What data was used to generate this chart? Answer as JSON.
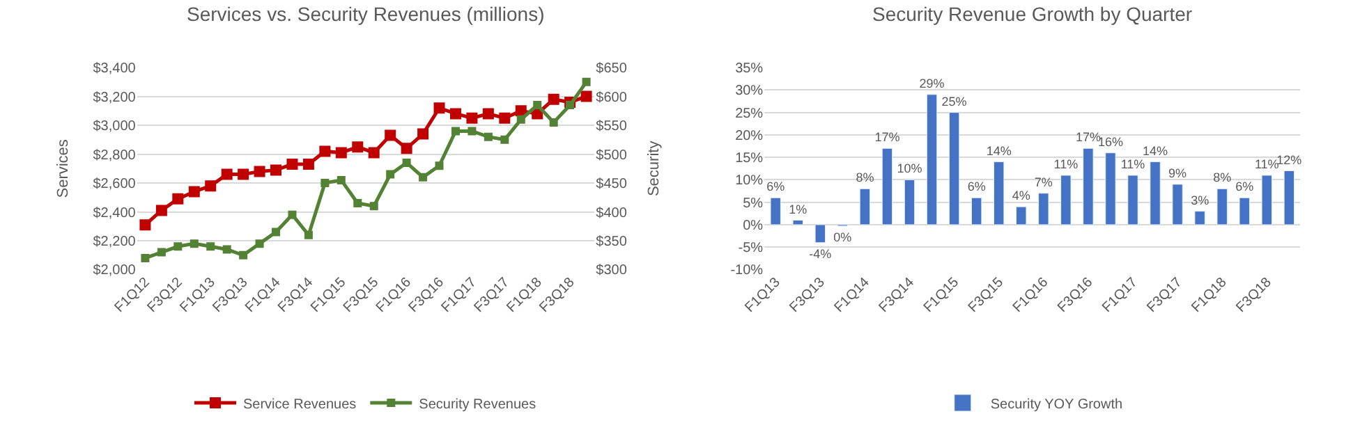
{
  "chart_data": [
    {
      "type": "line",
      "title": "Services vs. Security Revenues (millions)",
      "ylabel": "Services",
      "y2label": "Security",
      "categories": [
        "F1Q12",
        null,
        "F3Q12",
        null,
        "F1Q13",
        null,
        "F3Q13",
        null,
        "F1Q14",
        null,
        "F3Q14",
        null,
        "F1Q15",
        null,
        "F3Q15",
        null,
        "F1Q16",
        null,
        "F3Q16",
        null,
        "F1Q17",
        null,
        "F3Q17",
        null,
        "F1Q18",
        null,
        "F3Q18",
        null
      ],
      "series": [
        {
          "name": "Service Revenues",
          "color": "#c00000",
          "values": [
            2310,
            2410,
            2490,
            2540,
            2580,
            2660,
            2660,
            2680,
            2690,
            2730,
            2730,
            2820,
            2810,
            2850,
            2810,
            2930,
            2840,
            2940,
            3120,
            3080,
            3050,
            3080,
            3050,
            3100,
            3080,
            3180,
            3160,
            3200
          ]
        },
        {
          "name": "Security Revenues",
          "color": "#548235",
          "axis": "y2",
          "values": [
            320,
            330,
            340,
            345,
            340,
            335,
            325,
            345,
            365,
            395,
            360,
            450,
            455,
            415,
            410,
            465,
            485,
            460,
            480,
            540,
            540,
            530,
            525,
            560,
            585,
            555,
            585,
            625
          ]
        }
      ],
      "ylim": [
        2000,
        3400
      ],
      "yticks": [
        {
          "value": 2000,
          "label": "$2,000"
        },
        {
          "value": 2200,
          "label": "$2,200"
        },
        {
          "value": 2400,
          "label": "$2,400"
        },
        {
          "value": 2600,
          "label": "$2,600"
        },
        {
          "value": 2800,
          "label": "$2,800"
        },
        {
          "value": 3000,
          "label": "$3,000"
        },
        {
          "value": 3200,
          "label": "$3,200"
        },
        {
          "value": 3400,
          "label": "$3,400"
        }
      ],
      "y2lim": [
        300,
        650
      ],
      "y2ticks": [
        {
          "value": 300,
          "label": "$300"
        },
        {
          "value": 350,
          "label": "$350"
        },
        {
          "value": 400,
          "label": "$400"
        },
        {
          "value": 450,
          "label": "$450"
        },
        {
          "value": 500,
          "label": "$500"
        },
        {
          "value": 550,
          "label": "$550"
        },
        {
          "value": 600,
          "label": "$600"
        },
        {
          "value": 650,
          "label": "$650"
        }
      ],
      "grid": "y",
      "legend": "bottom",
      "marker": "square",
      "line_style": "solid"
    },
    {
      "type": "bar",
      "title": "Security Revenue Growth by Quarter",
      "categories": [
        "F1Q13",
        null,
        "F3Q13",
        null,
        "F1Q14",
        null,
        "F3Q14",
        null,
        "F1Q15",
        null,
        "F3Q15",
        null,
        "F1Q16",
        null,
        "F3Q16",
        null,
        "F1Q17",
        null,
        "F3Q17",
        null,
        "F1Q18",
        null,
        "F3Q18",
        null
      ],
      "series": [
        {
          "name": "Security YOY Growth",
          "color": "#4472c4",
          "values": [
            6,
            1,
            -4,
            -0.3,
            8,
            17,
            10,
            29,
            25,
            6,
            14,
            4,
            7,
            11,
            17,
            16,
            11,
            14,
            9,
            3,
            8,
            6,
            11,
            12
          ],
          "value_labels": [
            "6%",
            "1%",
            "-4%",
            "0%",
            "8%",
            "17%",
            "10%",
            "29%",
            "25%",
            "6%",
            "14%",
            "4%",
            "7%",
            "11%",
            "17%",
            "16%",
            "11%",
            "14%",
            "9%",
            "3%",
            "8%",
            "6%",
            "11%",
            "12%"
          ]
        }
      ],
      "ylim": [
        -10,
        35
      ],
      "yticks": [
        {
          "value": -10,
          "label": "-10%"
        },
        {
          "value": -5,
          "label": "-5%"
        },
        {
          "value": 0,
          "label": "0%"
        },
        {
          "value": 5,
          "label": "5%"
        },
        {
          "value": 10,
          "label": "10%"
        },
        {
          "value": 15,
          "label": "15%"
        },
        {
          "value": 20,
          "label": "20%"
        },
        {
          "value": 25,
          "label": "25%"
        },
        {
          "value": 30,
          "label": "30%"
        },
        {
          "value": 35,
          "label": "35%"
        }
      ],
      "grid": "y",
      "legend": "bottom"
    }
  ]
}
